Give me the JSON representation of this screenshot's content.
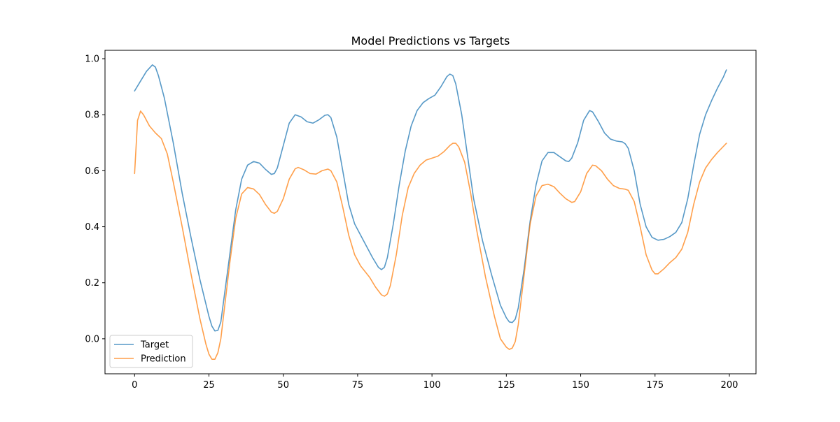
{
  "figure": {
    "title": "Model Predictions vs Targets"
  },
  "chart_data": {
    "type": "line",
    "title": "Model Predictions vs Targets",
    "xlabel": "",
    "ylabel": "",
    "xlim": [
      -9.95,
      208.95
    ],
    "ylim": [
      -0.125,
      1.03
    ],
    "xticks": [
      0,
      25,
      50,
      75,
      100,
      125,
      150,
      175,
      200
    ],
    "yticks": [
      0.0,
      0.2,
      0.4,
      0.6,
      0.8,
      1.0
    ],
    "grid": false,
    "legend_position": "lower-left",
    "series": [
      {
        "name": "Target",
        "color": "#1f77b4",
        "points": [
          [
            0,
            0.885
          ],
          [
            2,
            0.92
          ],
          [
            4,
            0.955
          ],
          [
            6,
            0.978
          ],
          [
            7,
            0.97
          ],
          [
            8,
            0.94
          ],
          [
            10,
            0.86
          ],
          [
            13,
            0.7
          ],
          [
            16,
            0.52
          ],
          [
            19,
            0.36
          ],
          [
            22,
            0.21
          ],
          [
            25,
            0.08
          ],
          [
            26,
            0.045
          ],
          [
            27,
            0.028
          ],
          [
            28,
            0.03
          ],
          [
            29,
            0.06
          ],
          [
            30,
            0.14
          ],
          [
            32,
            0.3
          ],
          [
            34,
            0.46
          ],
          [
            36,
            0.57
          ],
          [
            38,
            0.62
          ],
          [
            40,
            0.633
          ],
          [
            42,
            0.627
          ],
          [
            44,
            0.605
          ],
          [
            46,
            0.587
          ],
          [
            47,
            0.59
          ],
          [
            48,
            0.61
          ],
          [
            50,
            0.69
          ],
          [
            52,
            0.77
          ],
          [
            54,
            0.8
          ],
          [
            56,
            0.792
          ],
          [
            58,
            0.775
          ],
          [
            60,
            0.77
          ],
          [
            62,
            0.782
          ],
          [
            64,
            0.798
          ],
          [
            65,
            0.8
          ],
          [
            66,
            0.79
          ],
          [
            68,
            0.72
          ],
          [
            70,
            0.6
          ],
          [
            72,
            0.48
          ],
          [
            74,
            0.41
          ],
          [
            77,
            0.35
          ],
          [
            80,
            0.29
          ],
          [
            82,
            0.255
          ],
          [
            83,
            0.247
          ],
          [
            84,
            0.255
          ],
          [
            85,
            0.29
          ],
          [
            87,
            0.41
          ],
          [
            89,
            0.55
          ],
          [
            91,
            0.67
          ],
          [
            93,
            0.76
          ],
          [
            95,
            0.815
          ],
          [
            97,
            0.843
          ],
          [
            99,
            0.858
          ],
          [
            101,
            0.87
          ],
          [
            103,
            0.9
          ],
          [
            105,
            0.936
          ],
          [
            106,
            0.945
          ],
          [
            107,
            0.94
          ],
          [
            108,
            0.91
          ],
          [
            110,
            0.8
          ],
          [
            112,
            0.65
          ],
          [
            114,
            0.5
          ],
          [
            117,
            0.35
          ],
          [
            120,
            0.23
          ],
          [
            123,
            0.12
          ],
          [
            125,
            0.075
          ],
          [
            126,
            0.06
          ],
          [
            127,
            0.058
          ],
          [
            128,
            0.07
          ],
          [
            129,
            0.11
          ],
          [
            131,
            0.25
          ],
          [
            133,
            0.42
          ],
          [
            135,
            0.55
          ],
          [
            137,
            0.635
          ],
          [
            139,
            0.665
          ],
          [
            141,
            0.665
          ],
          [
            143,
            0.65
          ],
          [
            145,
            0.635
          ],
          [
            146,
            0.633
          ],
          [
            147,
            0.645
          ],
          [
            149,
            0.7
          ],
          [
            151,
            0.78
          ],
          [
            153,
            0.815
          ],
          [
            154,
            0.81
          ],
          [
            156,
            0.775
          ],
          [
            158,
            0.735
          ],
          [
            160,
            0.713
          ],
          [
            162,
            0.706
          ],
          [
            164,
            0.703
          ],
          [
            165,
            0.696
          ],
          [
            166,
            0.68
          ],
          [
            168,
            0.6
          ],
          [
            170,
            0.48
          ],
          [
            172,
            0.4
          ],
          [
            174,
            0.362
          ],
          [
            176,
            0.352
          ],
          [
            178,
            0.355
          ],
          [
            180,
            0.365
          ],
          [
            182,
            0.38
          ],
          [
            184,
            0.415
          ],
          [
            186,
            0.5
          ],
          [
            188,
            0.62
          ],
          [
            190,
            0.73
          ],
          [
            192,
            0.8
          ],
          [
            194,
            0.85
          ],
          [
            196,
            0.895
          ],
          [
            198,
            0.935
          ],
          [
            199,
            0.96
          ]
        ]
      },
      {
        "name": "Prediction",
        "color": "#ff7f0e",
        "points": [
          [
            0,
            0.59
          ],
          [
            1,
            0.78
          ],
          [
            2,
            0.813
          ],
          [
            3,
            0.8
          ],
          [
            5,
            0.76
          ],
          [
            7,
            0.735
          ],
          [
            9,
            0.715
          ],
          [
            11,
            0.66
          ],
          [
            13,
            0.56
          ],
          [
            16,
            0.4
          ],
          [
            19,
            0.23
          ],
          [
            22,
            0.07
          ],
          [
            24,
            -0.02
          ],
          [
            25,
            -0.055
          ],
          [
            26,
            -0.073
          ],
          [
            27,
            -0.073
          ],
          [
            28,
            -0.05
          ],
          [
            29,
            0.0
          ],
          [
            30,
            0.09
          ],
          [
            32,
            0.27
          ],
          [
            34,
            0.43
          ],
          [
            36,
            0.517
          ],
          [
            38,
            0.54
          ],
          [
            40,
            0.535
          ],
          [
            42,
            0.515
          ],
          [
            44,
            0.48
          ],
          [
            46,
            0.452
          ],
          [
            47,
            0.448
          ],
          [
            48,
            0.455
          ],
          [
            50,
            0.5
          ],
          [
            52,
            0.57
          ],
          [
            54,
            0.607
          ],
          [
            55,
            0.612
          ],
          [
            57,
            0.603
          ],
          [
            59,
            0.59
          ],
          [
            61,
            0.588
          ],
          [
            63,
            0.6
          ],
          [
            65,
            0.606
          ],
          [
            66,
            0.6
          ],
          [
            68,
            0.56
          ],
          [
            70,
            0.47
          ],
          [
            72,
            0.37
          ],
          [
            74,
            0.3
          ],
          [
            76,
            0.26
          ],
          [
            79,
            0.22
          ],
          [
            81,
            0.185
          ],
          [
            83,
            0.157
          ],
          [
            84,
            0.152
          ],
          [
            85,
            0.16
          ],
          [
            86,
            0.19
          ],
          [
            88,
            0.3
          ],
          [
            90,
            0.44
          ],
          [
            92,
            0.54
          ],
          [
            94,
            0.59
          ],
          [
            96,
            0.62
          ],
          [
            98,
            0.638
          ],
          [
            100,
            0.645
          ],
          [
            102,
            0.652
          ],
          [
            104,
            0.668
          ],
          [
            106,
            0.69
          ],
          [
            107,
            0.698
          ],
          [
            108,
            0.698
          ],
          [
            109,
            0.685
          ],
          [
            111,
            0.63
          ],
          [
            113,
            0.52
          ],
          [
            115,
            0.39
          ],
          [
            118,
            0.22
          ],
          [
            121,
            0.08
          ],
          [
            123,
            0.0
          ],
          [
            125,
            -0.03
          ],
          [
            126,
            -0.038
          ],
          [
            127,
            -0.033
          ],
          [
            128,
            -0.01
          ],
          [
            129,
            0.05
          ],
          [
            131,
            0.23
          ],
          [
            133,
            0.41
          ],
          [
            135,
            0.51
          ],
          [
            137,
            0.547
          ],
          [
            139,
            0.552
          ],
          [
            141,
            0.543
          ],
          [
            143,
            0.52
          ],
          [
            145,
            0.5
          ],
          [
            147,
            0.487
          ],
          [
            148,
            0.49
          ],
          [
            150,
            0.525
          ],
          [
            152,
            0.59
          ],
          [
            154,
            0.62
          ],
          [
            155,
            0.618
          ],
          [
            157,
            0.6
          ],
          [
            159,
            0.57
          ],
          [
            161,
            0.547
          ],
          [
            163,
            0.537
          ],
          [
            165,
            0.534
          ],
          [
            166,
            0.53
          ],
          [
            168,
            0.49
          ],
          [
            170,
            0.4
          ],
          [
            172,
            0.3
          ],
          [
            174,
            0.245
          ],
          [
            175,
            0.232
          ],
          [
            176,
            0.232
          ],
          [
            178,
            0.25
          ],
          [
            180,
            0.272
          ],
          [
            182,
            0.29
          ],
          [
            184,
            0.32
          ],
          [
            186,
            0.38
          ],
          [
            188,
            0.48
          ],
          [
            190,
            0.56
          ],
          [
            192,
            0.61
          ],
          [
            194,
            0.64
          ],
          [
            196,
            0.665
          ],
          [
            198,
            0.687
          ],
          [
            199,
            0.698
          ]
        ]
      }
    ]
  }
}
